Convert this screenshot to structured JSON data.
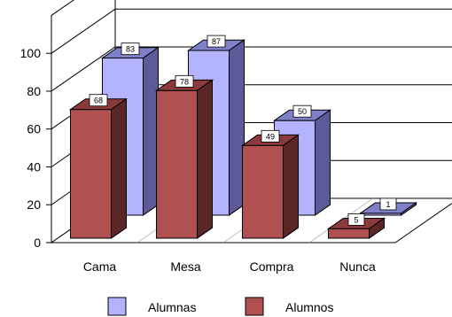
{
  "chart_data": {
    "type": "bar",
    "categories": [
      "Cama",
      "Mesa",
      "Compra",
      "Nunca"
    ],
    "series": [
      {
        "name": "Alumnas",
        "values": [
          83,
          87,
          50,
          1
        ],
        "color": "#B3B3FF",
        "side_color": "#5B5B99",
        "top_color": "#8080C8"
      },
      {
        "name": "Alumnos",
        "values": [
          68,
          78,
          49,
          5
        ],
        "color": "#B05050",
        "side_color": "#5A2626",
        "top_color": "#8A3A3A"
      }
    ],
    "yticks": [
      0,
      20,
      40,
      60,
      80,
      100
    ],
    "ylim": [
      0,
      120
    ],
    "grid": true,
    "legend_position": "bottom",
    "style": "3d-clustered-bar"
  }
}
